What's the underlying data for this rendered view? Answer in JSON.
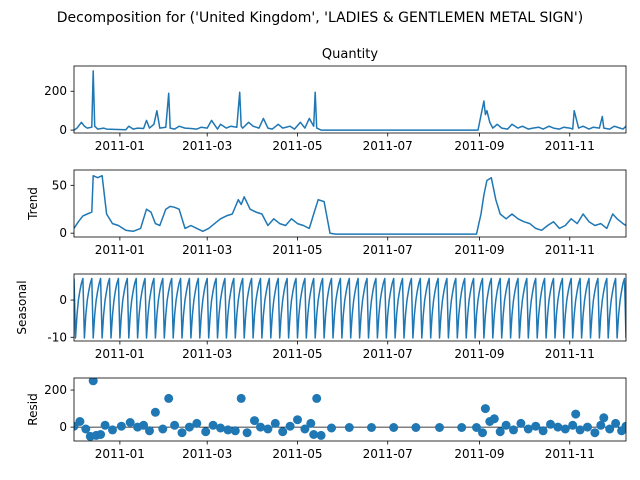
{
  "chart_data": {
    "type": "line",
    "suptitle": "Decomposition for ('United Kingdom', 'LADIES & GENTLEMEN METAL SIGN')",
    "x_range": [
      "2010-12-01",
      "2011-12-09"
    ],
    "x_ticks": [
      "2011-01",
      "2011-03",
      "2011-05",
      "2011-07",
      "2011-09",
      "2011-11"
    ],
    "series_color": "#1f77b4",
    "panels": [
      {
        "key": "observed",
        "title": "Quantity",
        "ylabel": "",
        "plot": "line",
        "ylim": [
          -15,
          330
        ],
        "yticks": [
          0,
          200
        ],
        "x": [
          "2010-12-01",
          "2010-12-03",
          "2010-12-06",
          "2010-12-08",
          "2010-12-10",
          "2010-12-13",
          "2010-12-14",
          "2010-12-15",
          "2010-12-17",
          "2010-12-21",
          "2010-12-23",
          "2011-01-05",
          "2011-01-07",
          "2011-01-10",
          "2011-01-13",
          "2011-01-17",
          "2011-01-19",
          "2011-01-21",
          "2011-01-24",
          "2011-01-26",
          "2011-01-28",
          "2011-02-01",
          "2011-02-03",
          "2011-02-04",
          "2011-02-07",
          "2011-02-10",
          "2011-02-14",
          "2011-02-18",
          "2011-02-22",
          "2011-02-25",
          "2011-03-01",
          "2011-03-04",
          "2011-03-08",
          "2011-03-10",
          "2011-03-14",
          "2011-03-17",
          "2011-03-21",
          "2011-03-23",
          "2011-03-24",
          "2011-03-25",
          "2011-03-29",
          "2011-04-01",
          "2011-04-05",
          "2011-04-08",
          "2011-04-11",
          "2011-04-14",
          "2011-04-18",
          "2011-04-21",
          "2011-04-26",
          "2011-04-29",
          "2011-05-03",
          "2011-05-06",
          "2011-05-09",
          "2011-05-12",
          "2011-05-13",
          "2011-05-14",
          "2011-05-17",
          "2011-05-20",
          "2011-05-23",
          "2011-05-28",
          "2011-06-10",
          "2011-07-01",
          "2011-07-20",
          "2011-08-10",
          "2011-08-31",
          "2011-09-04",
          "2011-09-05",
          "2011-09-06",
          "2011-09-08",
          "2011-09-10",
          "2011-09-13",
          "2011-09-16",
          "2011-09-20",
          "2011-09-23",
          "2011-09-27",
          "2011-09-30",
          "2011-10-04",
          "2011-10-07",
          "2011-10-11",
          "2011-10-14",
          "2011-10-18",
          "2011-10-21",
          "2011-10-25",
          "2011-10-28",
          "2011-11-01",
          "2011-11-03",
          "2011-11-04",
          "2011-11-07",
          "2011-11-10",
          "2011-11-14",
          "2011-11-17",
          "2011-11-21",
          "2011-11-23",
          "2011-11-24",
          "2011-11-28",
          "2011-12-01",
          "2011-12-05",
          "2011-12-07",
          "2011-12-09"
        ],
        "y": [
          0,
          10,
          40,
          20,
          10,
          15,
          305,
          20,
          5,
          10,
          5,
          2,
          20,
          5,
          10,
          8,
          50,
          10,
          30,
          100,
          10,
          15,
          190,
          10,
          5,
          20,
          10,
          8,
          5,
          15,
          10,
          50,
          5,
          30,
          10,
          20,
          15,
          195,
          20,
          10,
          40,
          20,
          10,
          60,
          10,
          5,
          30,
          10,
          20,
          5,
          40,
          10,
          60,
          20,
          195,
          10,
          0,
          0,
          0,
          0,
          0,
          0,
          0,
          0,
          0,
          150,
          80,
          100,
          40,
          10,
          30,
          10,
          5,
          30,
          10,
          20,
          5,
          10,
          15,
          5,
          20,
          10,
          5,
          15,
          10,
          5,
          100,
          10,
          20,
          5,
          15,
          10,
          70,
          10,
          5,
          20,
          10,
          5,
          20
        ]
      },
      {
        "key": "trend",
        "title": "",
        "ylabel": "Trend",
        "plot": "line",
        "ylim": [
          -4,
          66
        ],
        "yticks": [
          0,
          50
        ],
        "x": [
          "2010-12-01",
          "2010-12-04",
          "2010-12-07",
          "2010-12-10",
          "2010-12-13",
          "2010-12-14",
          "2010-12-17",
          "2010-12-20",
          "2010-12-23",
          "2010-12-27",
          "2010-12-31",
          "2011-01-05",
          "2011-01-10",
          "2011-01-15",
          "2011-01-19",
          "2011-01-22",
          "2011-01-25",
          "2011-01-28",
          "2011-02-01",
          "2011-02-04",
          "2011-02-07",
          "2011-02-10",
          "2011-02-14",
          "2011-02-18",
          "2011-02-22",
          "2011-02-26",
          "2011-03-02",
          "2011-03-06",
          "2011-03-10",
          "2011-03-14",
          "2011-03-18",
          "2011-03-22",
          "2011-03-24",
          "2011-03-26",
          "2011-03-30",
          "2011-04-03",
          "2011-04-07",
          "2011-04-11",
          "2011-04-15",
          "2011-04-19",
          "2011-04-23",
          "2011-04-27",
          "2011-05-01",
          "2011-05-05",
          "2011-05-09",
          "2011-05-12",
          "2011-05-15",
          "2011-05-19",
          "2011-05-23",
          "2011-05-27",
          "2011-06-05",
          "2011-06-20",
          "2011-07-10",
          "2011-08-01",
          "2011-08-20",
          "2011-08-30",
          "2011-09-02",
          "2011-09-04",
          "2011-09-06",
          "2011-09-09",
          "2011-09-12",
          "2011-09-15",
          "2011-09-19",
          "2011-09-23",
          "2011-09-27",
          "2011-10-01",
          "2011-10-05",
          "2011-10-09",
          "2011-10-13",
          "2011-10-17",
          "2011-10-21",
          "2011-10-25",
          "2011-10-29",
          "2011-11-02",
          "2011-11-06",
          "2011-11-10",
          "2011-11-14",
          "2011-11-18",
          "2011-11-22",
          "2011-11-26",
          "2011-11-30",
          "2011-12-03",
          "2011-12-07",
          "2011-12-09"
        ],
        "y": [
          5,
          12,
          18,
          20,
          22,
          60,
          58,
          60,
          20,
          10,
          8,
          3,
          2,
          5,
          25,
          22,
          10,
          8,
          25,
          28,
          27,
          25,
          5,
          8,
          5,
          2,
          5,
          10,
          15,
          18,
          20,
          35,
          30,
          38,
          25,
          22,
          20,
          8,
          15,
          10,
          8,
          15,
          10,
          8,
          5,
          20,
          35,
          33,
          0,
          -1,
          -1,
          -1,
          -1,
          -1,
          -1,
          -1,
          20,
          40,
          55,
          58,
          35,
          20,
          15,
          20,
          15,
          12,
          10,
          5,
          3,
          8,
          12,
          5,
          8,
          15,
          10,
          20,
          12,
          8,
          10,
          5,
          20,
          15,
          10,
          8
        ]
      },
      {
        "key": "seasonal",
        "title": "",
        "ylabel": "Seasonal",
        "plot": "sawtooth",
        "ylim": [
          -11,
          7
        ],
        "yticks": [
          -10,
          0
        ],
        "period_days": 6,
        "cycle_y": [
          5.8,
          -10.2,
          -4,
          0,
          2.5,
          4.5
        ]
      },
      {
        "key": "resid",
        "title": "",
        "ylabel": "Resid",
        "plot": "scatter",
        "ylim": [
          -75,
          265
        ],
        "yticks": [
          0,
          200
        ],
        "x": [
          "2010-12-01",
          "2010-12-05",
          "2010-12-09",
          "2010-12-12",
          "2010-12-14",
          "2010-12-16",
          "2010-12-19",
          "2010-12-22",
          "2010-12-27",
          "2011-01-02",
          "2011-01-08",
          "2011-01-13",
          "2011-01-17",
          "2011-01-21",
          "2011-01-25",
          "2011-01-30",
          "2011-02-03",
          "2011-02-07",
          "2011-02-12",
          "2011-02-17",
          "2011-02-22",
          "2011-02-28",
          "2011-03-05",
          "2011-03-10",
          "2011-03-15",
          "2011-03-20",
          "2011-03-24",
          "2011-03-28",
          "2011-04-02",
          "2011-04-06",
          "2011-04-11",
          "2011-04-16",
          "2011-04-21",
          "2011-04-26",
          "2011-05-01",
          "2011-05-06",
          "2011-05-10",
          "2011-05-12",
          "2011-05-14",
          "2011-05-17",
          "2011-05-24",
          "2011-06-05",
          "2011-06-20",
          "2011-07-05",
          "2011-07-20",
          "2011-08-05",
          "2011-08-20",
          "2011-08-30",
          "2011-09-03",
          "2011-09-05",
          "2011-09-08",
          "2011-09-11",
          "2011-09-15",
          "2011-09-19",
          "2011-09-24",
          "2011-09-29",
          "2011-10-04",
          "2011-10-09",
          "2011-10-14",
          "2011-10-19",
          "2011-10-24",
          "2011-10-29",
          "2011-11-03",
          "2011-11-05",
          "2011-11-08",
          "2011-11-13",
          "2011-11-18",
          "2011-11-22",
          "2011-11-24",
          "2011-11-28",
          "2011-12-02",
          "2011-12-06",
          "2011-12-09"
        ],
        "y": [
          5,
          30,
          -10,
          -50,
          250,
          -45,
          -40,
          10,
          -15,
          5,
          25,
          0,
          10,
          -20,
          80,
          -10,
          155,
          10,
          -30,
          0,
          20,
          -25,
          10,
          -5,
          -15,
          -20,
          155,
          -30,
          35,
          0,
          -10,
          20,
          -25,
          5,
          40,
          -10,
          20,
          -40,
          155,
          -45,
          -5,
          -2,
          -2,
          -2,
          -2,
          -2,
          -2,
          -2,
          -30,
          100,
          30,
          45,
          -25,
          10,
          -15,
          20,
          -10,
          5,
          -20,
          15,
          0,
          -10,
          10,
          70,
          -15,
          0,
          -30,
          10,
          50,
          -10,
          20,
          -20,
          5
        ]
      }
    ]
  }
}
